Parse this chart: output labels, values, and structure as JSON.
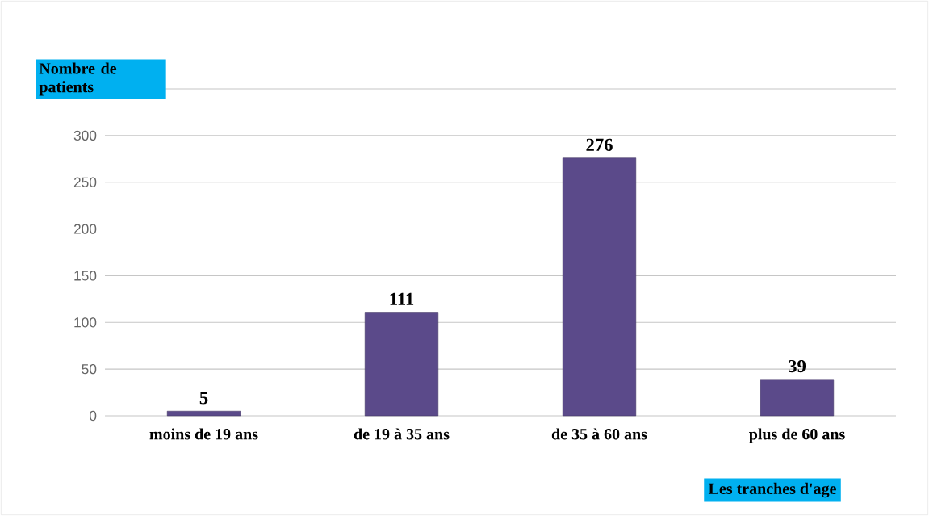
{
  "chart_data": {
    "type": "bar",
    "xlabel": "Les tranches d'age",
    "ylabel": "Nombre de patients",
    "categories": [
      "moins de 19 ans",
      "de 19 à 35 ans",
      "de 35 à 60 ans",
      "plus de 60 ans"
    ],
    "values": [
      5,
      111,
      276,
      39
    ],
    "color": "#5b4a8a",
    "ylim": [
      0,
      350
    ],
    "yticks": [
      0,
      50,
      100,
      150,
      200,
      250,
      300,
      {
        "value": 350,
        "label": null
      }
    ],
    "grid": "y",
    "data_labels": true
  }
}
